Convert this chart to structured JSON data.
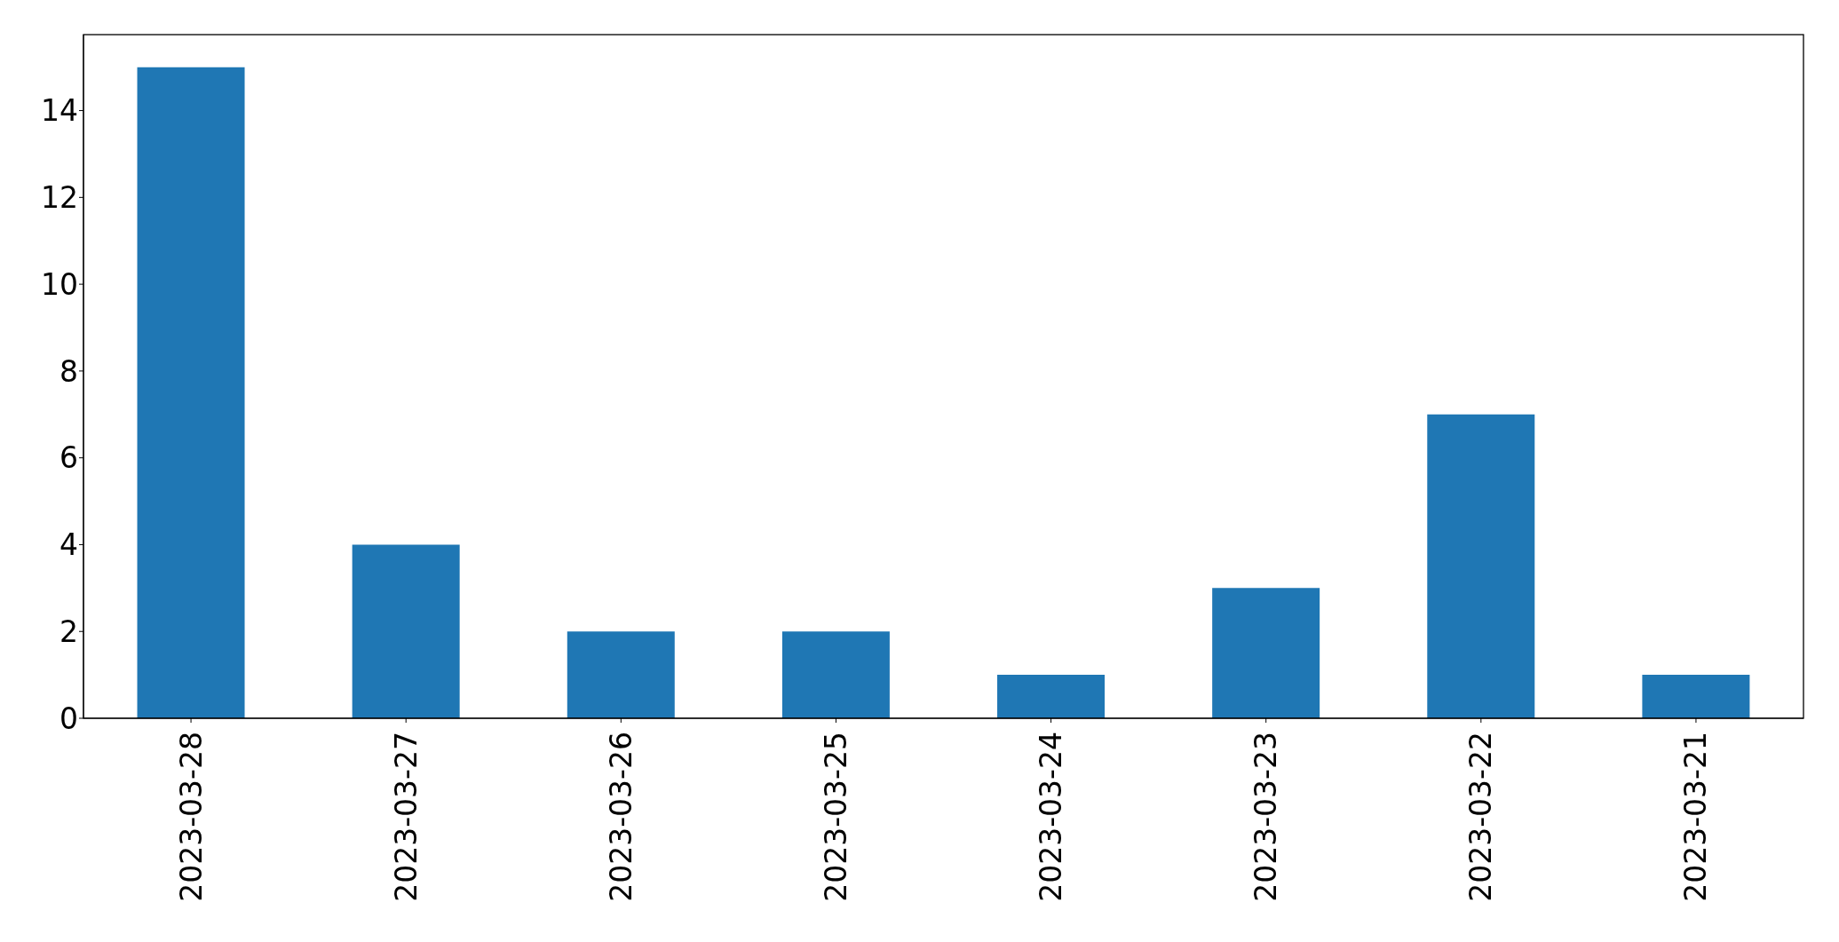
{
  "chart_data": {
    "type": "bar",
    "categories": [
      "2023-03-28",
      "2023-03-27",
      "2023-03-26",
      "2023-03-25",
      "2023-03-24",
      "2023-03-23",
      "2023-03-22",
      "2023-03-21"
    ],
    "values": [
      15,
      4,
      2,
      2,
      1,
      3,
      7,
      1
    ],
    "color": "#1f77b4",
    "ylim": [
      0,
      15.75
    ],
    "yticks": [
      0,
      2,
      4,
      6,
      8,
      10,
      12,
      14
    ],
    "grid": false
  }
}
